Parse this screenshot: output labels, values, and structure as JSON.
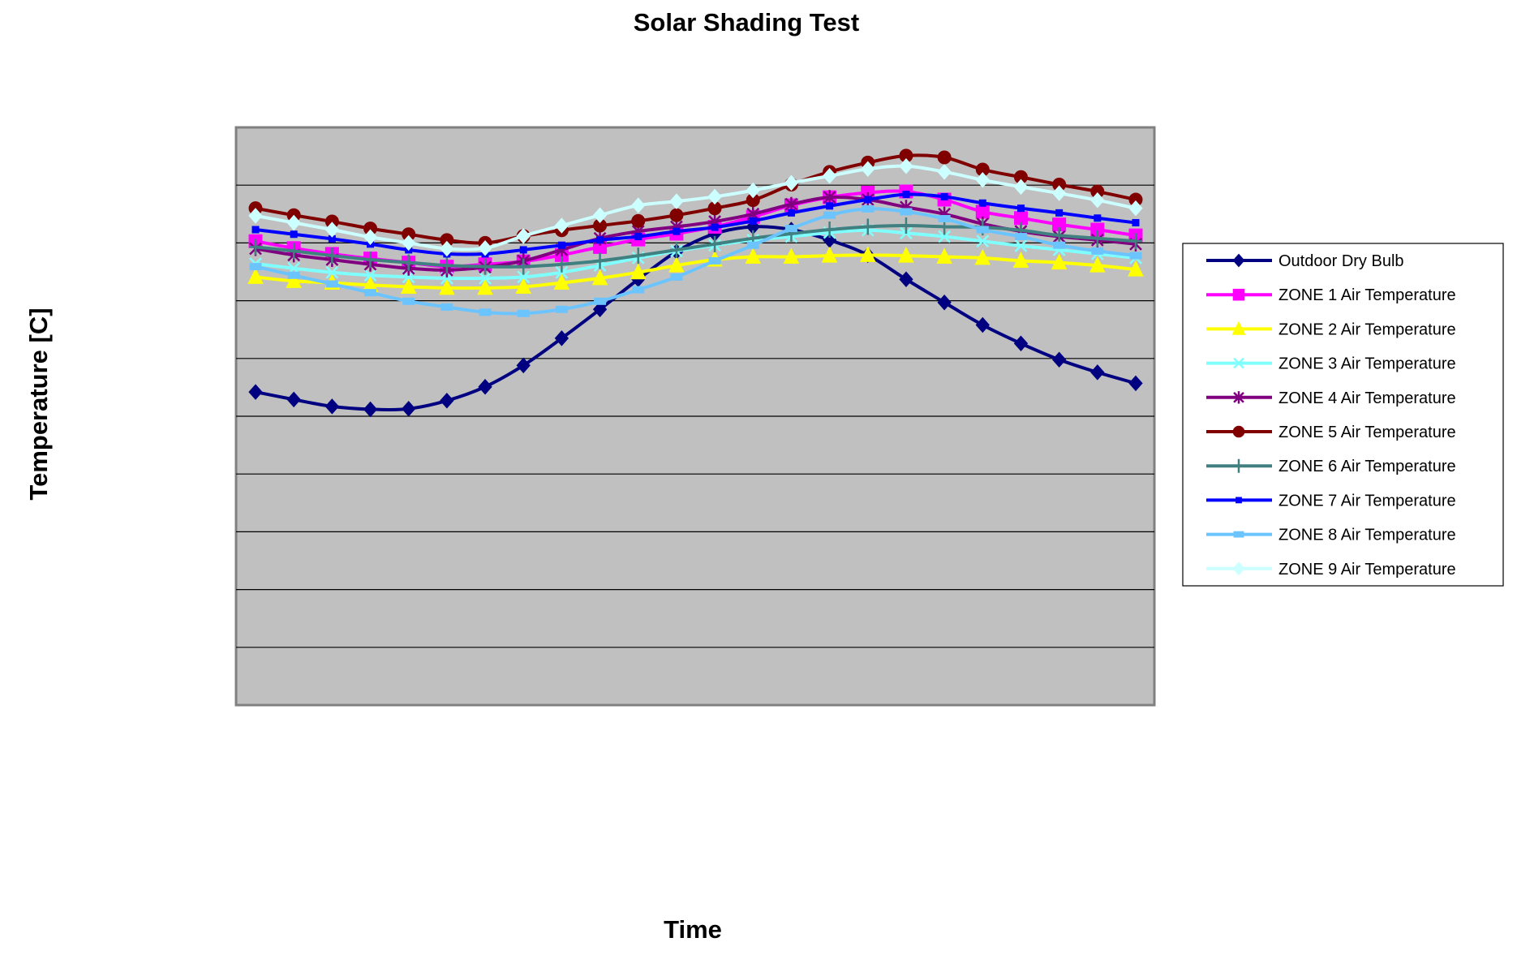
{
  "chart_data": {
    "type": "line",
    "title": "Solar Shading Test",
    "xlabel": "Time",
    "ylabel": "Temperature [C]",
    "ylim": [
      0,
      10
    ],
    "grid": true,
    "legend_position": "right",
    "plot_background": "#C0C0C0",
    "series": [
      {
        "name": "Outdoor Dry Bulb",
        "color": "#000080",
        "marker": "diamond",
        "values": [
          5.42,
          5.29,
          5.17,
          5.12,
          5.13,
          5.27,
          5.51,
          5.88,
          6.35,
          6.85,
          7.37,
          7.85,
          8.16,
          8.28,
          8.23,
          8.05,
          7.79,
          7.37,
          6.97,
          6.58,
          6.26,
          5.98,
          5.76,
          5.57
        ]
      },
      {
        "name": "ZONE 1 Air Temperature",
        "color": "#FF00FF",
        "marker": "square",
        "values": [
          8.03,
          7.91,
          7.81,
          7.73,
          7.66,
          7.59,
          7.63,
          7.68,
          7.79,
          7.93,
          8.06,
          8.16,
          8.28,
          8.45,
          8.65,
          8.79,
          8.87,
          8.89,
          8.75,
          8.54,
          8.43,
          8.32,
          8.23,
          8.13
        ]
      },
      {
        "name": "ZONE 2 Air Temperature",
        "color": "#FFFF00",
        "marker": "triangle",
        "values": [
          7.41,
          7.34,
          7.31,
          7.27,
          7.24,
          7.22,
          7.22,
          7.24,
          7.31,
          7.39,
          7.49,
          7.61,
          7.71,
          7.76,
          7.76,
          7.78,
          7.79,
          7.78,
          7.76,
          7.74,
          7.69,
          7.66,
          7.61,
          7.54
        ]
      },
      {
        "name": "ZONE 3 Air Temperature",
        "color": "#80FFFF",
        "marker": "x",
        "values": [
          7.64,
          7.56,
          7.49,
          7.44,
          7.41,
          7.39,
          7.39,
          7.41,
          7.49,
          7.61,
          7.74,
          7.86,
          7.96,
          8.05,
          8.11,
          8.18,
          8.22,
          8.17,
          8.11,
          8.03,
          7.95,
          7.88,
          7.81,
          7.74
        ]
      },
      {
        "name": "ZONE 4 Air Temperature",
        "color": "#800080",
        "marker": "star",
        "values": [
          7.9,
          7.79,
          7.71,
          7.63,
          7.56,
          7.53,
          7.58,
          7.69,
          7.88,
          8.08,
          8.2,
          8.28,
          8.37,
          8.5,
          8.67,
          8.79,
          8.75,
          8.62,
          8.5,
          8.33,
          8.2,
          8.11,
          8.05,
          7.98
        ]
      },
      {
        "name": "ZONE 5 Air Temperature",
        "color": "#800000",
        "marker": "circle",
        "values": [
          8.6,
          8.48,
          8.37,
          8.25,
          8.15,
          8.05,
          8.0,
          8.12,
          8.22,
          8.3,
          8.38,
          8.48,
          8.6,
          8.74,
          9.01,
          9.23,
          9.39,
          9.51,
          9.48,
          9.27,
          9.14,
          9.01,
          8.89,
          8.75
        ]
      },
      {
        "name": "ZONE 6 Air Temperature",
        "color": "#408080",
        "marker": "plus",
        "values": [
          7.93,
          7.86,
          7.78,
          7.71,
          7.66,
          7.61,
          7.59,
          7.59,
          7.63,
          7.69,
          7.78,
          7.88,
          7.98,
          8.08,
          8.16,
          8.23,
          8.28,
          8.3,
          8.28,
          8.27,
          8.22,
          8.13,
          8.08,
          8.03
        ]
      },
      {
        "name": "ZONE 7 Air Temperature",
        "color": "#0000FF",
        "marker": "small-square",
        "values": [
          8.23,
          8.15,
          8.07,
          7.98,
          7.88,
          7.81,
          7.81,
          7.88,
          7.96,
          8.05,
          8.11,
          8.2,
          8.27,
          8.38,
          8.52,
          8.64,
          8.75,
          8.84,
          8.8,
          8.69,
          8.6,
          8.52,
          8.43,
          8.35
        ]
      },
      {
        "name": "ZONE 8 Air Temperature",
        "color": "#6CC4FF",
        "marker": "dash",
        "values": [
          7.59,
          7.44,
          7.29,
          7.14,
          6.99,
          6.89,
          6.8,
          6.78,
          6.85,
          6.99,
          7.19,
          7.41,
          7.69,
          7.96,
          8.25,
          8.48,
          8.59,
          8.54,
          8.42,
          8.23,
          8.11,
          7.96,
          7.86,
          7.78
        ]
      },
      {
        "name": "ZONE 9 Air Temperature",
        "color": "#CCFFFF",
        "marker": "diamond",
        "values": [
          8.47,
          8.35,
          8.23,
          8.1,
          8.0,
          7.9,
          7.91,
          8.12,
          8.3,
          8.48,
          8.65,
          8.72,
          8.8,
          8.91,
          9.04,
          9.16,
          9.28,
          9.33,
          9.23,
          9.09,
          8.97,
          8.86,
          8.74,
          8.6
        ]
      }
    ]
  }
}
